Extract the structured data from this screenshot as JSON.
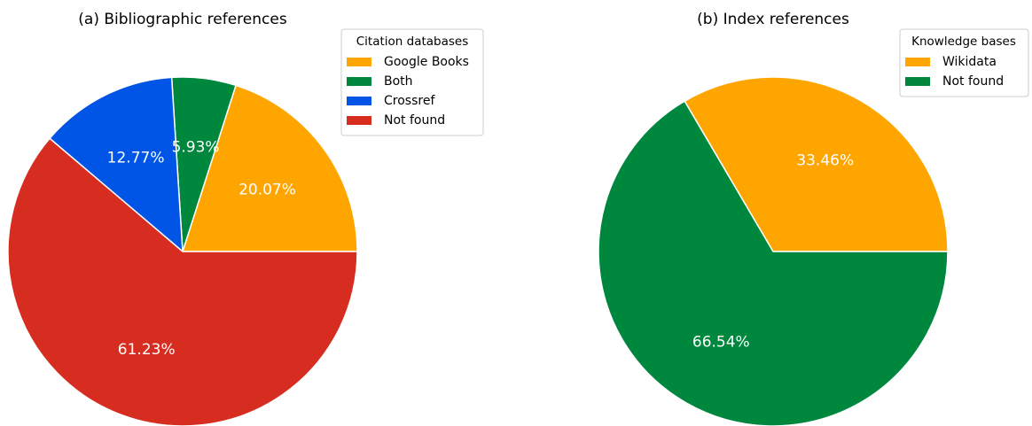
{
  "chart_data": [
    {
      "type": "pie",
      "title": "(a) Bibliographic references",
      "legend_title": "Citation databases",
      "legend_position": "top-right",
      "categories": [
        "Google Books",
        "Both",
        "Crossref",
        "Not found"
      ],
      "values": [
        20.07,
        5.93,
        12.77,
        61.23
      ],
      "labels": [
        "20.07%",
        "5.93%",
        "12.77%",
        "61.23%"
      ],
      "colors": [
        "#FFA500",
        "#00873E",
        "#0055E6",
        "#D62D20"
      ]
    },
    {
      "type": "pie",
      "title": "(b) Index references",
      "legend_title": "Knowledge bases",
      "legend_position": "top-right",
      "categories": [
        "Wikidata",
        "Not found"
      ],
      "values": [
        33.46,
        66.54
      ],
      "labels": [
        "33.46%",
        "66.54%"
      ],
      "colors": [
        "#FFA500",
        "#00873E"
      ]
    }
  ]
}
